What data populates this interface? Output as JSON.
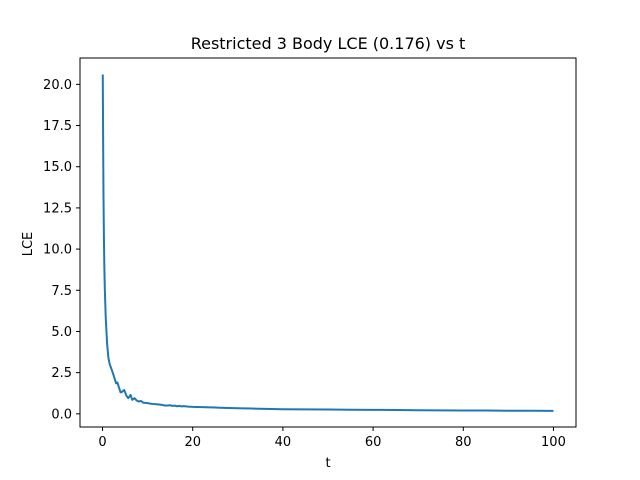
{
  "chart_data": {
    "type": "line",
    "title": "Restricted 3 Body LCE (0.176) vs t",
    "xlabel": "t",
    "ylabel": "LCE",
    "xlim": [
      -5,
      105
    ],
    "ylim": [
      -0.8,
      21.6
    ],
    "xticks": [
      0,
      20,
      40,
      60,
      80,
      100
    ],
    "xtick_labels": [
      "0",
      "20",
      "40",
      "60",
      "80",
      "100"
    ],
    "yticks": [
      0.0,
      2.5,
      5.0,
      7.5,
      10.0,
      12.5,
      15.0,
      17.5,
      20.0
    ],
    "ytick_labels": [
      "0.0",
      "2.5",
      "5.0",
      "7.5",
      "10.0",
      "12.5",
      "15.0",
      "17.5",
      "20.0"
    ],
    "grid": false,
    "series": [
      {
        "color": "#1f77b4",
        "x": [
          0.05,
          0.1,
          0.2,
          0.3,
          0.4,
          0.5,
          0.7,
          1.0,
          1.3,
          1.6,
          2.0,
          2.5,
          3.0,
          3.3,
          3.7,
          4.0,
          4.4,
          4.8,
          5.3,
          5.7,
          6.2,
          6.6,
          7.1,
          7.6,
          8.0,
          8.5,
          9.0,
          10.0,
          11.0,
          12.0,
          13.0,
          14.0,
          15.0,
          15.5,
          16.0,
          16.5,
          17.0,
          17.5,
          18.0,
          19.0,
          20.0,
          22.0,
          24.0,
          25.0,
          26.0,
          27.0,
          28.0,
          30.0,
          33.0,
          36.0,
          40.0,
          45.0,
          50.0,
          55.0,
          60.0,
          65.0,
          70.0,
          75.0,
          80.0,
          85.0,
          90.0,
          95.0,
          100.0
        ],
        "y": [
          20.6,
          18.0,
          13.5,
          10.8,
          8.9,
          7.6,
          5.9,
          4.3,
          3.4,
          3.0,
          2.7,
          2.3,
          1.85,
          1.9,
          1.55,
          1.3,
          1.35,
          1.45,
          1.1,
          0.95,
          1.15,
          0.85,
          0.95,
          0.8,
          0.75,
          0.78,
          0.68,
          0.65,
          0.6,
          0.58,
          0.55,
          0.5,
          0.52,
          0.48,
          0.5,
          0.46,
          0.48,
          0.45,
          0.47,
          0.44,
          0.42,
          0.41,
          0.39,
          0.38,
          0.37,
          0.36,
          0.35,
          0.34,
          0.32,
          0.3,
          0.28,
          0.27,
          0.26,
          0.25,
          0.24,
          0.23,
          0.22,
          0.21,
          0.2,
          0.2,
          0.19,
          0.19,
          0.18
        ]
      }
    ]
  }
}
